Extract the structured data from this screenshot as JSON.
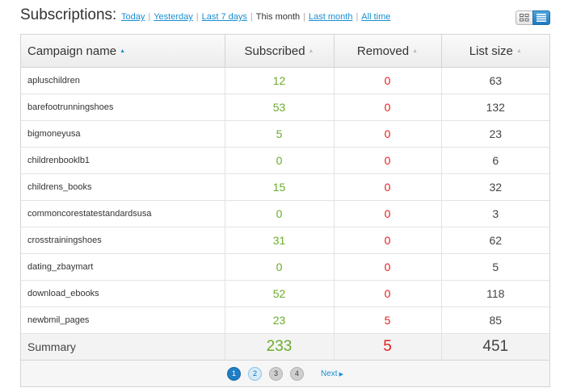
{
  "header": {
    "title": "Subscriptions:",
    "filters": [
      {
        "label": "Today"
      },
      {
        "label": "Yesterday"
      },
      {
        "label": "Last 7 days"
      },
      {
        "label": "This month"
      },
      {
        "label": "Last month"
      },
      {
        "label": "All time"
      }
    ],
    "selected_filter": "This month",
    "view_modes": [
      "grid-view-icon",
      "list-view-icon"
    ],
    "active_view": "list"
  },
  "table": {
    "columns": {
      "campaign": "Campaign name",
      "subscribed": "Subscribed",
      "removed": "Removed",
      "list_size": "List size"
    },
    "sort_column": "campaign",
    "rows": [
      {
        "name": "apluschildren",
        "subscribed": "12",
        "removed": "0",
        "list_size": "63"
      },
      {
        "name": "barefootrunningshoes",
        "subscribed": "53",
        "removed": "0",
        "list_size": "132"
      },
      {
        "name": "bigmoneyusa",
        "subscribed": "5",
        "removed": "0",
        "list_size": "23"
      },
      {
        "name": "childrenbooklb1",
        "subscribed": "0",
        "removed": "0",
        "list_size": "6"
      },
      {
        "name": "childrens_books",
        "subscribed": "15",
        "removed": "0",
        "list_size": "32"
      },
      {
        "name": "commoncorestatestandardsusa",
        "subscribed": "0",
        "removed": "0",
        "list_size": "3"
      },
      {
        "name": "crosstrainingshoes",
        "subscribed": "31",
        "removed": "0",
        "list_size": "62"
      },
      {
        "name": "dating_zbaymart",
        "subscribed": "0",
        "removed": "0",
        "list_size": "5"
      },
      {
        "name": "download_ebooks",
        "subscribed": "52",
        "removed": "0",
        "list_size": "118"
      },
      {
        "name": "newbmil_pages",
        "subscribed": "23",
        "removed": "5",
        "list_size": "85"
      }
    ],
    "summary": {
      "label": "Summary",
      "subscribed": "233",
      "removed": "5",
      "list_size": "451"
    }
  },
  "pagination": {
    "pages": [
      "1",
      "2",
      "3",
      "4"
    ],
    "current": "1",
    "next_label": "Next"
  },
  "colors": {
    "accent": "#1a8fd1",
    "subscribed": "#6aac2a",
    "removed": "#e02020"
  }
}
